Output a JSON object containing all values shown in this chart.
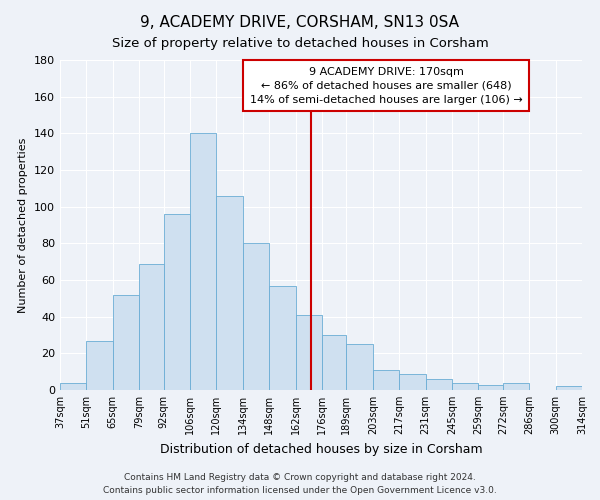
{
  "title": "9, ACADEMY DRIVE, CORSHAM, SN13 0SA",
  "subtitle": "Size of property relative to detached houses in Corsham",
  "xlabel": "Distribution of detached houses by size in Corsham",
  "ylabel": "Number of detached properties",
  "bar_labels": [
    "37sqm",
    "51sqm",
    "65sqm",
    "79sqm",
    "92sqm",
    "106sqm",
    "120sqm",
    "134sqm",
    "148sqm",
    "162sqm",
    "176sqm",
    "189sqm",
    "203sqm",
    "217sqm",
    "231sqm",
    "245sqm",
    "259sqm",
    "272sqm",
    "286sqm",
    "300sqm",
    "314sqm"
  ],
  "bar_values": [
    4,
    27,
    52,
    69,
    96,
    140,
    106,
    80,
    57,
    41,
    30,
    25,
    11,
    9,
    6,
    4,
    3,
    4,
    0,
    2
  ],
  "bar_edges": [
    37,
    51,
    65,
    79,
    92,
    106,
    120,
    134,
    148,
    162,
    176,
    189,
    203,
    217,
    231,
    245,
    259,
    272,
    286,
    300,
    314
  ],
  "bar_color": "#cfe0f0",
  "bar_edgecolor": "#6aadd5",
  "vline_x": 170,
  "vline_color": "#cc0000",
  "ylim": [
    0,
    180
  ],
  "annotation_title": "9 ACADEMY DRIVE: 170sqm",
  "annotation_line1": "← 86% of detached houses are smaller (648)",
  "annotation_line2": "14% of semi-detached houses are larger (106) →",
  "annotation_box_facecolor": "#ffffff",
  "annotation_box_edgecolor": "#cc0000",
  "footer_line1": "Contains HM Land Registry data © Crown copyright and database right 2024.",
  "footer_line2": "Contains public sector information licensed under the Open Government Licence v3.0.",
  "background_color": "#eef2f8",
  "grid_color": "#ffffff",
  "title_fontsize": 11,
  "subtitle_fontsize": 9.5,
  "ylabel_fontsize": 8,
  "xlabel_fontsize": 9,
  "tick_fontsize": 7,
  "annotation_fontsize": 8,
  "footer_fontsize": 6.5
}
